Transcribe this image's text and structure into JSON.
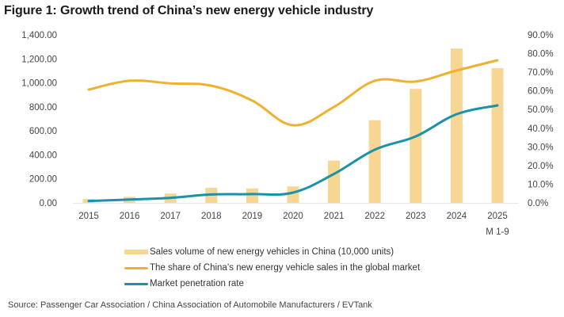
{
  "title": "Figure 1: Growth trend of China’s new energy vehicle industry",
  "source": "Source: Passenger Car Association / China Association of Automobile Manufacturers / EVTank",
  "colors": {
    "bar": "#f7d592",
    "share_line": "#f0b030",
    "penetration_line": "#1a93a8",
    "axis_line": "#e6e6e6"
  },
  "chart_data": {
    "type": "bar",
    "title": "Figure 1: Growth trend of China’s new energy vehicle industry",
    "xlabel": "",
    "ylabel": "",
    "categories": [
      "2015",
      "2016",
      "2017",
      "2018",
      "2019",
      "2020",
      "2021",
      "2022",
      "2023",
      "2024",
      "2025"
    ],
    "category_sublabels": [
      "",
      "",
      "",
      "",
      "",
      "",
      "",
      "",
      "",
      "",
      "M 1-9"
    ],
    "ylim": [
      0,
      1400
    ],
    "y2lim": [
      0,
      90
    ],
    "yticks": [
      "0.00",
      "200.00",
      "400.00",
      "600.00",
      "800.00",
      "1,000.00",
      "1,200.00",
      "1,400.00"
    ],
    "y2ticks": [
      "0.0%",
      "10.0%",
      "20.0%",
      "30.0%",
      "40.0%",
      "50.0%",
      "60.0%",
      "70.0%",
      "80.0%",
      "90.0%"
    ],
    "grid": false,
    "legend_position": "bottom",
    "series": [
      {
        "name": "Sales volume of new energy vehicles in China (10,000 units)",
        "type": "bar",
        "axis": "left",
        "values": [
          33.1,
          50.7,
          77.7,
          125.6,
          120.6,
          136.7,
          352.1,
          688.7,
          949.5,
          1286.6,
          1122.8
        ]
      },
      {
        "name": "The share of China’s new energy vehicle sales in the global market",
        "type": "line",
        "axis": "right",
        "unit": "%",
        "values": [
          60.7,
          65.4,
          64.0,
          62.8,
          54.8,
          41.6,
          51.4,
          65.4,
          65.0,
          70.9,
          76.4
        ]
      },
      {
        "name": "Market penetration rate",
        "type": "line",
        "axis": "right",
        "unit": "%",
        "values": [
          1.0,
          1.8,
          2.7,
          4.5,
          4.7,
          5.5,
          15.5,
          28.5,
          35.6,
          47.5,
          52.2
        ]
      }
    ]
  }
}
